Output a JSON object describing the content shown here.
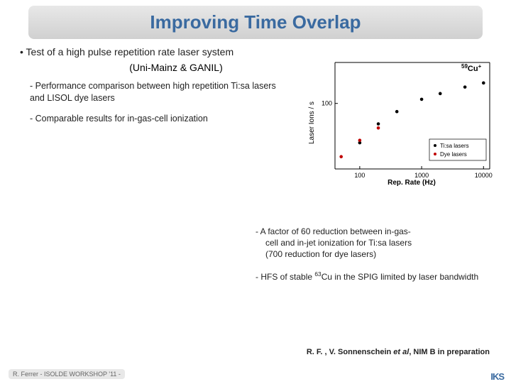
{
  "title": "Improving Time Overlap",
  "bullet_main": "• Test of a high pulse repetition rate laser system",
  "bullet_sub": "(Uni-Mainz & GANIL)",
  "dash1": "- Performance comparison between high repetition Ti:sa lasers and LISOL dye lasers",
  "dash2": "- Comparable results for in-gas-cell ionization",
  "right_dash1_l1": "- A factor of 60 reduction  between in-gas-",
  "right_dash1_l2": "cell and in-jet ionization for Ti:sa lasers",
  "right_dash1_l3": "(700 reduction  for dye lasers)",
  "right_dash2_pre": "- HFS of stable ",
  "right_dash2_sup": "63",
  "right_dash2_post": "Cu in the SPIG limited by laser bandwidth",
  "citation_pre": "R. F. , V. Sonnenschein ",
  "citation_em": "et al",
  "citation_post": ", NIM B  in preparation",
  "footer_text": "R. Ferrer - ISOLDE WORKSHOP '11 -",
  "logo": "IKS",
  "chart": {
    "isotope_sup": "59",
    "isotope": "Cu",
    "isotope_charge": "+",
    "ylabel": "Laser Ions / s",
    "xlabel": "Rep. Rate (Hz)",
    "y_ticks": [
      "100"
    ],
    "x_ticks": [
      "100",
      "1000",
      "10000"
    ],
    "legend": [
      "Ti:sa lasers",
      "Dye lasers"
    ],
    "bg": "#ffffff",
    "axis_color": "#000000",
    "ti_color": "#000000",
    "dye_color": "#c00000",
    "ti_points_log": [
      [
        2.0,
        1.52
      ],
      [
        2.3,
        1.75
      ],
      [
        2.6,
        1.9
      ],
      [
        3.0,
        2.05
      ],
      [
        3.3,
        2.12
      ],
      [
        3.7,
        2.2
      ],
      [
        4.0,
        2.25
      ]
    ],
    "dye_points_log": [
      [
        1.7,
        1.35
      ],
      [
        2.0,
        1.55
      ],
      [
        2.3,
        1.7
      ]
    ],
    "x_range": [
      1.6,
      4.1
    ],
    "y_range": [
      1.2,
      2.5
    ]
  }
}
